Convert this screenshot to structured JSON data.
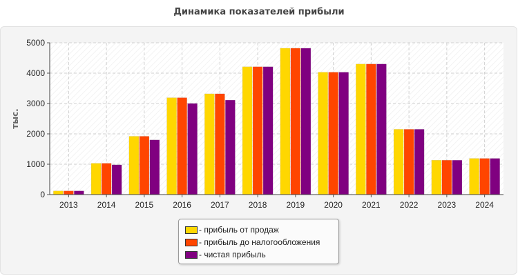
{
  "chart_data": {
    "type": "bar",
    "title": "Динамика показателей прибыли",
    "ylabel": "тыс.",
    "xlabel": "",
    "ylim": [
      0,
      5000
    ],
    "yticks": [
      0,
      1000,
      2000,
      3000,
      4000,
      5000
    ],
    "grid": true,
    "legend_position": "bottom-center",
    "categories": [
      "2013",
      "2014",
      "2015",
      "2016",
      "2017",
      "2018",
      "2019",
      "2020",
      "2021",
      "2022",
      "2023",
      "2024"
    ],
    "series": [
      {
        "name": "- прибыль от продаж",
        "color": "#FFD700",
        "values": [
          120,
          1030,
          1920,
          3190,
          3320,
          4210,
          4820,
          4030,
          4300,
          2150,
          1130,
          1190
        ]
      },
      {
        "name": "- прибыль до налогообложения",
        "color": "#FF4500",
        "values": [
          120,
          1030,
          1920,
          3190,
          3320,
          4210,
          4820,
          4030,
          4300,
          2150,
          1130,
          1190
        ]
      },
      {
        "name": "- чистая прибыль",
        "color": "#800080",
        "values": [
          120,
          980,
          1800,
          3000,
          3110,
          4210,
          4820,
          4030,
          4300,
          2150,
          1130,
          1190
        ]
      }
    ]
  }
}
